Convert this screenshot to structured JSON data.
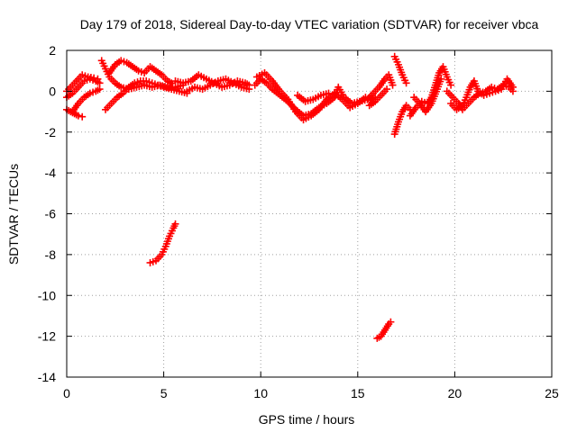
{
  "chart_data": {
    "type": "scatter",
    "title": "Day 179 of 2018, Sidereal Day-to-day VTEC variation (SDTVAR) for receiver vbca",
    "xlabel": "GPS time / hours",
    "ylabel": "SDTVAR / TECUs",
    "xlim": [
      0,
      25
    ],
    "ylim": [
      -14,
      2
    ],
    "xticks": [
      0,
      5,
      10,
      15,
      20,
      25
    ],
    "yticks": [
      -14,
      -12,
      -10,
      -8,
      -6,
      -4,
      -2,
      0,
      2
    ],
    "grid": true,
    "marker": "+",
    "color": "#ff0000",
    "series": [
      {
        "name": "SDTVAR",
        "segments": [
          [
            [
              0.0,
              -0.9
            ],
            [
              0.2,
              -1.0
            ],
            [
              0.4,
              -1.1
            ],
            [
              0.6,
              -1.2
            ],
            [
              0.8,
              -1.25
            ]
          ],
          [
            [
              0.0,
              -0.3
            ],
            [
              0.3,
              -0.1
            ],
            [
              0.6,
              0.2
            ],
            [
              0.9,
              0.5
            ],
            [
              1.2,
              0.6
            ],
            [
              1.5,
              0.5
            ],
            [
              1.7,
              0.4
            ]
          ],
          [
            [
              0.0,
              0.0
            ],
            [
              0.3,
              0.3
            ],
            [
              0.6,
              0.6
            ],
            [
              0.8,
              0.8
            ],
            [
              1.1,
              0.7
            ],
            [
              1.4,
              0.65
            ],
            [
              1.6,
              0.6
            ]
          ],
          [
            [
              0.3,
              -1.0
            ],
            [
              0.6,
              -0.6
            ],
            [
              0.9,
              -0.3
            ],
            [
              1.2,
              -0.1
            ],
            [
              1.5,
              0.0
            ],
            [
              1.7,
              0.1
            ]
          ],
          [
            [
              1.8,
              1.5
            ],
            [
              2.0,
              1.1
            ],
            [
              2.2,
              0.7
            ],
            [
              2.5,
              0.4
            ],
            [
              2.8,
              0.2
            ],
            [
              3.2,
              0.1
            ],
            [
              3.6,
              0.2
            ],
            [
              4.0,
              0.3
            ],
            [
              4.4,
              0.2
            ],
            [
              4.8,
              0.3
            ],
            [
              5.2,
              0.2
            ],
            [
              5.6,
              0.2
            ],
            [
              6.0,
              0.3
            ]
          ],
          [
            [
              2.2,
              0.9
            ],
            [
              2.5,
              1.3
            ],
            [
              2.8,
              1.5
            ],
            [
              3.1,
              1.4
            ],
            [
              3.4,
              1.2
            ],
            [
              3.7,
              1.0
            ],
            [
              4.0,
              0.9
            ],
            [
              4.3,
              1.2
            ],
            [
              4.6,
              1.0
            ],
            [
              4.9,
              0.8
            ],
            [
              5.2,
              0.5
            ],
            [
              5.4,
              0.4
            ]
          ],
          [
            [
              2.0,
              -0.9
            ],
            [
              2.3,
              -0.6
            ],
            [
              2.6,
              -0.3
            ],
            [
              2.9,
              -0.1
            ],
            [
              3.2,
              0.2
            ],
            [
              3.5,
              0.4
            ],
            [
              3.8,
              0.5
            ],
            [
              4.1,
              0.5
            ],
            [
              4.4,
              0.4
            ],
            [
              4.7,
              0.3
            ],
            [
              5.0,
              0.2
            ],
            [
              5.4,
              0.1
            ],
            [
              5.8,
              0.0
            ],
            [
              6.2,
              -0.1
            ]
          ],
          [
            [
              5.6,
              0.5
            ],
            [
              6.0,
              0.4
            ],
            [
              6.4,
              0.5
            ],
            [
              6.8,
              0.8
            ],
            [
              7.2,
              0.6
            ],
            [
              7.6,
              0.4
            ],
            [
              8.0,
              0.2
            ],
            [
              8.4,
              0.3
            ],
            [
              8.8,
              0.5
            ],
            [
              9.2,
              0.4
            ],
            [
              9.4,
              0.3
            ]
          ],
          [
            [
              6.2,
              0.0
            ],
            [
              6.6,
              0.2
            ],
            [
              7.0,
              0.1
            ],
            [
              7.4,
              0.3
            ],
            [
              7.8,
              0.5
            ],
            [
              8.2,
              0.6
            ],
            [
              8.6,
              0.4
            ],
            [
              9.0,
              0.2
            ],
            [
              9.4,
              0.1
            ]
          ],
          [
            [
              4.3,
              -8.4
            ],
            [
              4.6,
              -8.3
            ],
            [
              4.9,
              -8.0
            ],
            [
              5.1,
              -7.6
            ],
            [
              5.3,
              -7.1
            ],
            [
              5.5,
              -6.7
            ],
            [
              5.6,
              -6.5
            ]
          ],
          [
            [
              9.7,
              0.3
            ],
            [
              10.0,
              0.6
            ],
            [
              10.3,
              0.4
            ],
            [
              10.6,
              0.1
            ],
            [
              11.0,
              -0.2
            ],
            [
              11.4,
              -0.5
            ],
            [
              11.8,
              -0.9
            ],
            [
              12.2,
              -1.2
            ],
            [
              12.6,
              -1.1
            ],
            [
              13.0,
              -0.8
            ],
            [
              13.4,
              -0.6
            ],
            [
              13.8,
              -0.3
            ],
            [
              14.0,
              0.2
            ],
            [
              14.3,
              -0.3
            ],
            [
              14.7,
              -0.6
            ],
            [
              15.1,
              -0.5
            ],
            [
              15.5,
              -0.4
            ],
            [
              15.9,
              -0.3
            ]
          ],
          [
            [
              9.8,
              0.7
            ],
            [
              10.2,
              0.9
            ],
            [
              10.6,
              0.5
            ],
            [
              11.0,
              0.0
            ],
            [
              11.4,
              -0.4
            ],
            [
              11.8,
              -1.0
            ],
            [
              12.2,
              -1.4
            ],
            [
              12.6,
              -1.2
            ],
            [
              13.0,
              -0.9
            ],
            [
              13.4,
              -0.4
            ],
            [
              13.8,
              -0.1
            ],
            [
              14.2,
              -0.4
            ],
            [
              14.6,
              -0.8
            ],
            [
              15.0,
              -0.6
            ],
            [
              15.4,
              -0.3
            ],
            [
              15.8,
              -0.5
            ]
          ],
          [
            [
              11.9,
              -0.2
            ],
            [
              12.3,
              -0.5
            ],
            [
              12.7,
              -0.4
            ],
            [
              13.1,
              -0.2
            ],
            [
              13.5,
              -0.1
            ]
          ],
          [
            [
              15.5,
              -0.4
            ],
            [
              15.8,
              -0.1
            ],
            [
              16.1,
              0.2
            ],
            [
              16.4,
              0.6
            ],
            [
              16.6,
              0.8
            ],
            [
              16.8,
              0.3
            ]
          ],
          [
            [
              15.6,
              -0.7
            ],
            [
              15.9,
              -0.5
            ],
            [
              16.2,
              -0.2
            ],
            [
              16.5,
              0.1
            ]
          ],
          [
            [
              16.0,
              -12.1
            ],
            [
              16.2,
              -12.0
            ],
            [
              16.4,
              -11.7
            ],
            [
              16.6,
              -11.4
            ],
            [
              16.7,
              -11.3
            ]
          ],
          [
            [
              16.9,
              1.7
            ],
            [
              17.1,
              1.3
            ],
            [
              17.3,
              0.8
            ],
            [
              17.5,
              0.4
            ]
          ],
          [
            [
              16.9,
              -2.1
            ],
            [
              17.1,
              -1.5
            ],
            [
              17.3,
              -1.0
            ],
            [
              17.5,
              -0.7
            ],
            [
              17.7,
              -0.9
            ]
          ],
          [
            [
              17.7,
              -1.2
            ],
            [
              18.0,
              -0.8
            ],
            [
              18.3,
              -0.5
            ],
            [
              18.6,
              -0.6
            ],
            [
              18.8,
              -0.3
            ],
            [
              19.0,
              0.3
            ],
            [
              19.2,
              0.9
            ],
            [
              19.4,
              1.2
            ],
            [
              19.6,
              0.7
            ],
            [
              19.8,
              0.3
            ]
          ],
          [
            [
              17.9,
              -0.3
            ],
            [
              18.2,
              -0.6
            ],
            [
              18.5,
              -1.0
            ],
            [
              18.8,
              -0.6
            ],
            [
              19.1,
              0.1
            ],
            [
              19.3,
              0.6
            ]
          ],
          [
            [
              19.6,
              0.0
            ],
            [
              19.9,
              -0.3
            ],
            [
              20.2,
              -0.6
            ],
            [
              20.4,
              -0.9
            ],
            [
              20.7,
              -0.6
            ],
            [
              21.0,
              -0.3
            ],
            [
              21.3,
              -0.1
            ],
            [
              21.6,
              0.0
            ],
            [
              21.9,
              0.2
            ],
            [
              22.2,
              0.1
            ],
            [
              22.5,
              0.3
            ],
            [
              22.8,
              0.2
            ],
            [
              23.0,
              0.0
            ]
          ],
          [
            [
              19.8,
              -0.6
            ],
            [
              20.1,
              -0.9
            ],
            [
              20.4,
              -0.7
            ],
            [
              20.6,
              -0.3
            ],
            [
              20.8,
              0.2
            ],
            [
              21.0,
              0.5
            ],
            [
              21.2,
              0.0
            ],
            [
              21.5,
              -0.2
            ],
            [
              21.8,
              -0.1
            ],
            [
              22.1,
              0.0
            ],
            [
              22.4,
              0.1
            ],
            [
              22.7,
              0.6
            ],
            [
              23.0,
              0.2
            ]
          ]
        ]
      }
    ]
  }
}
